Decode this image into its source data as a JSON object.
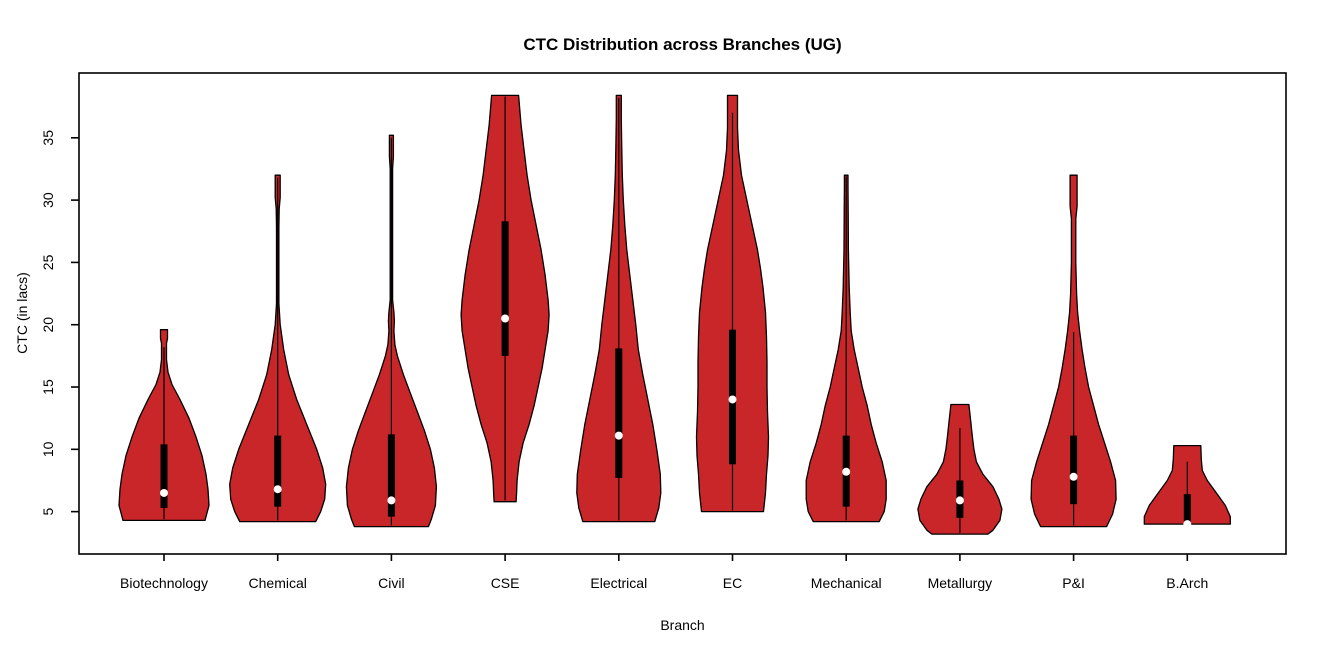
{
  "chart_data": {
    "type": "violin",
    "title": "CTC Distribution across Branches (UG)",
    "xlabel": "Branch",
    "ylabel": "CTC (in lacs)",
    "yticks": [
      5,
      10,
      15,
      20,
      25,
      30,
      35
    ],
    "ytick_labels": [
      "5",
      "10",
      "15",
      "20",
      "25",
      "30",
      "35"
    ],
    "ylim": [
      1.6,
      40.2
    ],
    "grid": false,
    "legend": "none",
    "violin_fill": "#C9262A",
    "violin_stroke": "#000000",
    "box_color": "#000000",
    "median_dot_color": "#FFFFFF",
    "series": [
      {
        "name": "Biotechnology",
        "median": 6.5,
        "q1": 5.3,
        "q3": 10.4,
        "whisker_low": 4.4,
        "whisker_high": 18.2,
        "density_min": 4.3,
        "density_max": 19.6,
        "outline": [
          [
            19.6,
            3.5
          ],
          [
            18.9,
            3.5
          ],
          [
            18.5,
            2.5
          ],
          [
            17.2,
            2.5
          ],
          [
            16.2,
            4
          ],
          [
            15.2,
            8
          ],
          [
            14,
            16
          ],
          [
            12.5,
            25
          ],
          [
            11,
            32
          ],
          [
            9.5,
            38
          ],
          [
            8,
            42
          ],
          [
            6.8,
            44
          ],
          [
            5.5,
            45
          ],
          [
            4.3,
            41
          ]
        ]
      },
      {
        "name": "Chemical",
        "median": 6.8,
        "q1": 5.4,
        "q3": 11.1,
        "whisker_low": 4.3,
        "whisker_high": 31.8,
        "density_min": 4.2,
        "density_max": 32.0,
        "outline": [
          [
            32,
            2.5
          ],
          [
            30.2,
            2.5
          ],
          [
            29.3,
            1.5
          ],
          [
            27.9,
            1.2
          ],
          [
            21.7,
            1.2
          ],
          [
            20,
            2.5
          ],
          [
            18,
            6
          ],
          [
            16,
            11
          ],
          [
            14,
            19
          ],
          [
            12,
            29
          ],
          [
            10,
            39
          ],
          [
            8.5,
            45
          ],
          [
            7.2,
            48
          ],
          [
            6,
            47
          ],
          [
            5,
            43
          ],
          [
            4.2,
            38
          ]
        ]
      },
      {
        "name": "Civil",
        "median": 5.9,
        "q1": 4.6,
        "q3": 11.2,
        "whisker_low": 3.9,
        "whisker_high": 35.0,
        "density_min": 3.8,
        "density_max": 35.2,
        "outline": [
          [
            35.2,
            2
          ],
          [
            33.5,
            2
          ],
          [
            32.5,
            1.2
          ],
          [
            22,
            1.2
          ],
          [
            21,
            2.5
          ],
          [
            20.3,
            3
          ],
          [
            19.5,
            2.5
          ],
          [
            18.4,
            3.5
          ],
          [
            17.5,
            6
          ],
          [
            16,
            12
          ],
          [
            14.5,
            19
          ],
          [
            13,
            26
          ],
          [
            11.5,
            33
          ],
          [
            10,
            39
          ],
          [
            8.5,
            43
          ],
          [
            7,
            45
          ],
          [
            5.5,
            44
          ],
          [
            4.4,
            40
          ],
          [
            3.8,
            37
          ]
        ]
      },
      {
        "name": "CSE",
        "median": 20.5,
        "q1": 17.5,
        "q3": 28.3,
        "whisker_low": 5.9,
        "whisker_high": 38.3,
        "density_min": 5.8,
        "density_max": 38.4,
        "outline": [
          [
            38.4,
            13.5
          ],
          [
            36,
            16
          ],
          [
            34,
            19
          ],
          [
            32,
            22
          ],
          [
            30,
            26
          ],
          [
            28,
            31
          ],
          [
            26,
            36
          ],
          [
            24,
            40
          ],
          [
            22,
            43
          ],
          [
            20.8,
            44
          ],
          [
            19.5,
            43
          ],
          [
            18,
            40
          ],
          [
            16.5,
            37
          ],
          [
            15,
            33
          ],
          [
            13.5,
            29
          ],
          [
            12,
            24
          ],
          [
            10.5,
            18
          ],
          [
            9,
            14
          ],
          [
            7.5,
            12
          ],
          [
            6.5,
            11.5
          ],
          [
            5.8,
            11
          ]
        ]
      },
      {
        "name": "Electrical",
        "median": 11.1,
        "q1": 7.7,
        "q3": 18.1,
        "whisker_low": 4.3,
        "whisker_high": 38.2,
        "density_min": 4.2,
        "density_max": 38.4,
        "outline": [
          [
            38.4,
            2.5
          ],
          [
            36.5,
            2.5
          ],
          [
            34,
            3
          ],
          [
            32,
            3.5
          ],
          [
            30,
            4.5
          ],
          [
            28,
            6
          ],
          [
            26,
            8
          ],
          [
            24,
            11
          ],
          [
            22,
            14
          ],
          [
            20,
            17
          ],
          [
            18,
            19.5
          ],
          [
            16,
            24
          ],
          [
            14,
            29
          ],
          [
            12,
            34
          ],
          [
            10,
            38
          ],
          [
            8,
            41.5
          ],
          [
            6.5,
            42
          ],
          [
            5.3,
            40
          ],
          [
            4.2,
            36
          ]
        ]
      },
      {
        "name": "EC",
        "median": 14.0,
        "q1": 8.8,
        "q3": 19.6,
        "whisker_low": 5.1,
        "whisker_high": 37.0,
        "density_min": 5.0,
        "density_max": 38.4,
        "outline": [
          [
            38.4,
            5
          ],
          [
            35.8,
            5
          ],
          [
            34,
            6
          ],
          [
            32,
            9
          ],
          [
            30.5,
            13
          ],
          [
            29,
            17
          ],
          [
            27.5,
            21
          ],
          [
            26,
            25
          ],
          [
            24.5,
            28
          ],
          [
            23,
            30.5
          ],
          [
            21,
            33
          ],
          [
            19,
            34
          ],
          [
            17,
            34.5
          ],
          [
            15,
            34.5
          ],
          [
            13,
            35
          ],
          [
            11,
            36
          ],
          [
            9.5,
            35.5
          ],
          [
            8,
            34
          ],
          [
            6.5,
            33
          ],
          [
            5,
            31
          ]
        ]
      },
      {
        "name": "Mechanical",
        "median": 8.2,
        "q1": 5.4,
        "q3": 11.1,
        "whisker_low": 4.3,
        "whisker_high": 31.9,
        "density_min": 4.2,
        "density_max": 32.0,
        "outline": [
          [
            32,
            1.8
          ],
          [
            31,
            1.8
          ],
          [
            29,
            2
          ],
          [
            26,
            2.2
          ],
          [
            23,
            3
          ],
          [
            21,
            4
          ],
          [
            19.5,
            5
          ],
          [
            18,
            8
          ],
          [
            16.5,
            12
          ],
          [
            15,
            16
          ],
          [
            13.5,
            21
          ],
          [
            12,
            25
          ],
          [
            10.5,
            30
          ],
          [
            9,
            36
          ],
          [
            7.5,
            40
          ],
          [
            6,
            40
          ],
          [
            5,
            38
          ],
          [
            4.2,
            33
          ]
        ]
      },
      {
        "name": "Metallurgy",
        "median": 5.9,
        "q1": 4.5,
        "q3": 7.5,
        "whisker_low": 3.3,
        "whisker_high": 11.7,
        "density_min": 3.2,
        "density_max": 13.6,
        "outline": [
          [
            13.6,
            9
          ],
          [
            12.5,
            10.5
          ],
          [
            11,
            12.5
          ],
          [
            10,
            14
          ],
          [
            9,
            16.5
          ],
          [
            8,
            23
          ],
          [
            7,
            33
          ],
          [
            6,
            39
          ],
          [
            5.2,
            42
          ],
          [
            4.3,
            40
          ],
          [
            3.5,
            33
          ],
          [
            3.2,
            28
          ]
        ]
      },
      {
        "name": "P&I",
        "median": 7.8,
        "q1": 5.6,
        "q3": 11.1,
        "whisker_low": 3.9,
        "whisker_high": 19.4,
        "density_min": 3.8,
        "density_max": 32.0,
        "outline": [
          [
            32,
            3.5
          ],
          [
            29.5,
            3.5
          ],
          [
            28.5,
            2.2
          ],
          [
            25,
            2.2
          ],
          [
            22.5,
            3
          ],
          [
            21,
            4
          ],
          [
            19.5,
            6
          ],
          [
            18,
            8.5
          ],
          [
            16.5,
            11.5
          ],
          [
            15,
            15
          ],
          [
            13.5,
            20
          ],
          [
            12,
            25
          ],
          [
            10.5,
            31
          ],
          [
            9,
            37
          ],
          [
            7.5,
            42
          ],
          [
            6,
            42.5
          ],
          [
            4.8,
            39
          ],
          [
            3.8,
            33
          ]
        ]
      },
      {
        "name": "B.Arch",
        "median": 4.0,
        "q1": 4.1,
        "q3": 6.4,
        "whisker_low": 4.0,
        "whisker_high": 9.0,
        "density_min": 4.0,
        "density_max": 10.3,
        "outline": [
          [
            10.3,
            13.5
          ],
          [
            9.2,
            14
          ],
          [
            8.3,
            15
          ],
          [
            7.5,
            20
          ],
          [
            6.5,
            29
          ],
          [
            5.5,
            38
          ],
          [
            4.6,
            43
          ],
          [
            4,
            43
          ]
        ]
      }
    ]
  }
}
